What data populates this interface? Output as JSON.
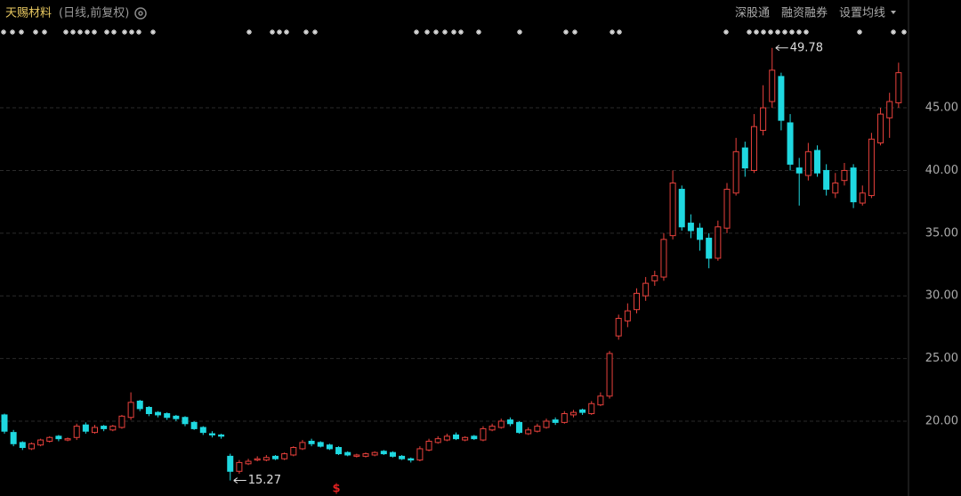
{
  "chart_data": {
    "type": "candlestick",
    "title": "天赐材料",
    "subtitle": "(日线,前复权)",
    "toolbar": [
      "深股通",
      "融资融券",
      "设置均线"
    ],
    "event_marker": "$",
    "up_color": "#e8413c",
    "down_color": "#1fd8e0",
    "ylim": [
      14.03,
      53.6
    ],
    "yticks": [
      {
        "value": 20,
        "label": "20.00"
      },
      {
        "value": 25,
        "label": "25.00"
      },
      {
        "value": 30,
        "label": "30.00"
      },
      {
        "value": 35,
        "label": "35.00"
      },
      {
        "value": 40,
        "label": "40.00"
      },
      {
        "value": 45,
        "label": "45.00"
      }
    ],
    "grid": true,
    "open": [
      20.5,
      19.1,
      18.3,
      17.8,
      18.1,
      18.4,
      18.8,
      18.5,
      18.7,
      19.7,
      19.1,
      19.6,
      19.3,
      19.5,
      20.3,
      21.6,
      21.1,
      20.7,
      20.6,
      20.4,
      20.3,
      19.9,
      19.5,
      19.0,
      18.9,
      17.2,
      16.0,
      16.6,
      16.9,
      16.9,
      17.2,
      17.0,
      17.3,
      17.8,
      18.4,
      18.3,
      18.1,
      17.9,
      17.5,
      17.2,
      17.2,
      17.3,
      17.6,
      17.5,
      17.2,
      17.0,
      16.9,
      17.7,
      18.3,
      18.5,
      18.9,
      18.5,
      18.8,
      18.5,
      19.3,
      19.5,
      20.1,
      19.9,
      19.0,
      19.2,
      19.5,
      20.1,
      19.9,
      20.5,
      20.9,
      20.6,
      21.3,
      22.0,
      26.8,
      28.0,
      28.9,
      30.0,
      31.2,
      31.5,
      34.8,
      38.5,
      35.8,
      35.4,
      34.6,
      33.0,
      35.4,
      38.2,
      41.8,
      40.0,
      43.2,
      45.5,
      47.5,
      43.8,
      40.2,
      39.6,
      41.6,
      40.0,
      38.2,
      39.2,
      40.2,
      37.4,
      38.0,
      42.2,
      44.2,
      45.4
    ],
    "high": [
      20.6,
      19.3,
      18.4,
      18.3,
      18.6,
      18.8,
      18.9,
      18.7,
      19.8,
      19.9,
      19.7,
      19.7,
      19.7,
      20.5,
      22.3,
      21.7,
      21.2,
      20.8,
      20.7,
      20.5,
      20.4,
      20.0,
      19.6,
      19.2,
      19.0,
      17.4,
      16.9,
      17.0,
      17.2,
      17.3,
      17.3,
      17.5,
      18.0,
      18.5,
      18.6,
      18.4,
      18.2,
      18.0,
      17.6,
      17.4,
      17.5,
      17.6,
      17.7,
      17.6,
      17.3,
      17.1,
      18.0,
      18.6,
      18.8,
      19.0,
      19.1,
      18.8,
      18.9,
      19.6,
      19.8,
      20.2,
      20.3,
      20.0,
      19.5,
      19.8,
      20.2,
      20.3,
      20.8,
      20.9,
      21.0,
      21.6,
      22.3,
      25.6,
      28.5,
      29.4,
      30.6,
      31.5,
      32.0,
      35.0,
      40.0,
      38.8,
      36.5,
      35.8,
      35.0,
      36.0,
      39.0,
      42.6,
      42.3,
      44.5,
      46.8,
      49.78,
      47.8,
      44.5,
      41.0,
      42.2,
      42.0,
      40.5,
      39.8,
      40.6,
      40.5,
      38.8,
      43.0,
      45.0,
      46.2,
      48.6
    ],
    "low": [
      19.0,
      18.0,
      17.7,
      17.7,
      18.0,
      18.3,
      18.4,
      18.4,
      18.5,
      19.0,
      19.0,
      19.2,
      19.2,
      19.4,
      20.1,
      20.8,
      20.4,
      20.3,
      20.1,
      20.0,
      19.6,
      19.3,
      18.9,
      18.7,
      18.6,
      15.27,
      15.8,
      16.5,
      16.8,
      16.8,
      16.9,
      16.9,
      17.2,
      17.7,
      18.0,
      17.9,
      17.7,
      17.3,
      17.2,
      17.1,
      17.1,
      17.2,
      17.3,
      17.1,
      16.9,
      16.7,
      16.8,
      17.6,
      18.2,
      18.4,
      18.5,
      18.4,
      18.5,
      18.4,
      19.2,
      19.4,
      19.6,
      19.0,
      18.9,
      19.1,
      19.4,
      19.7,
      19.8,
      20.3,
      20.5,
      20.5,
      21.2,
      21.8,
      26.5,
      27.5,
      28.6,
      29.6,
      30.8,
      31.2,
      34.5,
      35.2,
      34.6,
      33.6,
      32.2,
      32.8,
      35.0,
      38.0,
      39.5,
      39.8,
      42.8,
      45.0,
      43.2,
      40.0,
      37.2,
      39.2,
      39.5,
      38.0,
      37.8,
      38.8,
      37.0,
      37.2,
      37.8,
      42.0,
      42.6,
      45.0
    ],
    "close": [
      19.2,
      18.2,
      17.9,
      18.2,
      18.5,
      18.7,
      18.6,
      18.6,
      19.6,
      19.2,
      19.5,
      19.4,
      19.6,
      20.4,
      21.5,
      21.0,
      20.6,
      20.5,
      20.3,
      20.2,
      19.8,
      19.4,
      19.1,
      18.9,
      18.8,
      16.0,
      16.7,
      16.8,
      17.0,
      17.1,
      17.0,
      17.4,
      17.9,
      18.3,
      18.2,
      18.0,
      17.8,
      17.4,
      17.3,
      17.3,
      17.4,
      17.5,
      17.4,
      17.2,
      17.0,
      16.9,
      17.8,
      18.4,
      18.6,
      18.8,
      18.6,
      18.7,
      18.6,
      19.4,
      19.6,
      20.0,
      19.8,
      19.1,
      19.3,
      19.6,
      20.0,
      19.9,
      20.6,
      20.7,
      20.7,
      21.4,
      22.0,
      25.4,
      28.2,
      28.8,
      30.2,
      31.0,
      31.6,
      34.5,
      39.0,
      35.5,
      35.2,
      34.5,
      33.0,
      35.5,
      38.5,
      41.5,
      40.2,
      43.5,
      45.0,
      48.0,
      44.0,
      40.5,
      39.8,
      41.5,
      39.8,
      38.5,
      39.0,
      40.0,
      37.5,
      38.2,
      42.5,
      44.5,
      45.5,
      47.8
    ]
  }
}
